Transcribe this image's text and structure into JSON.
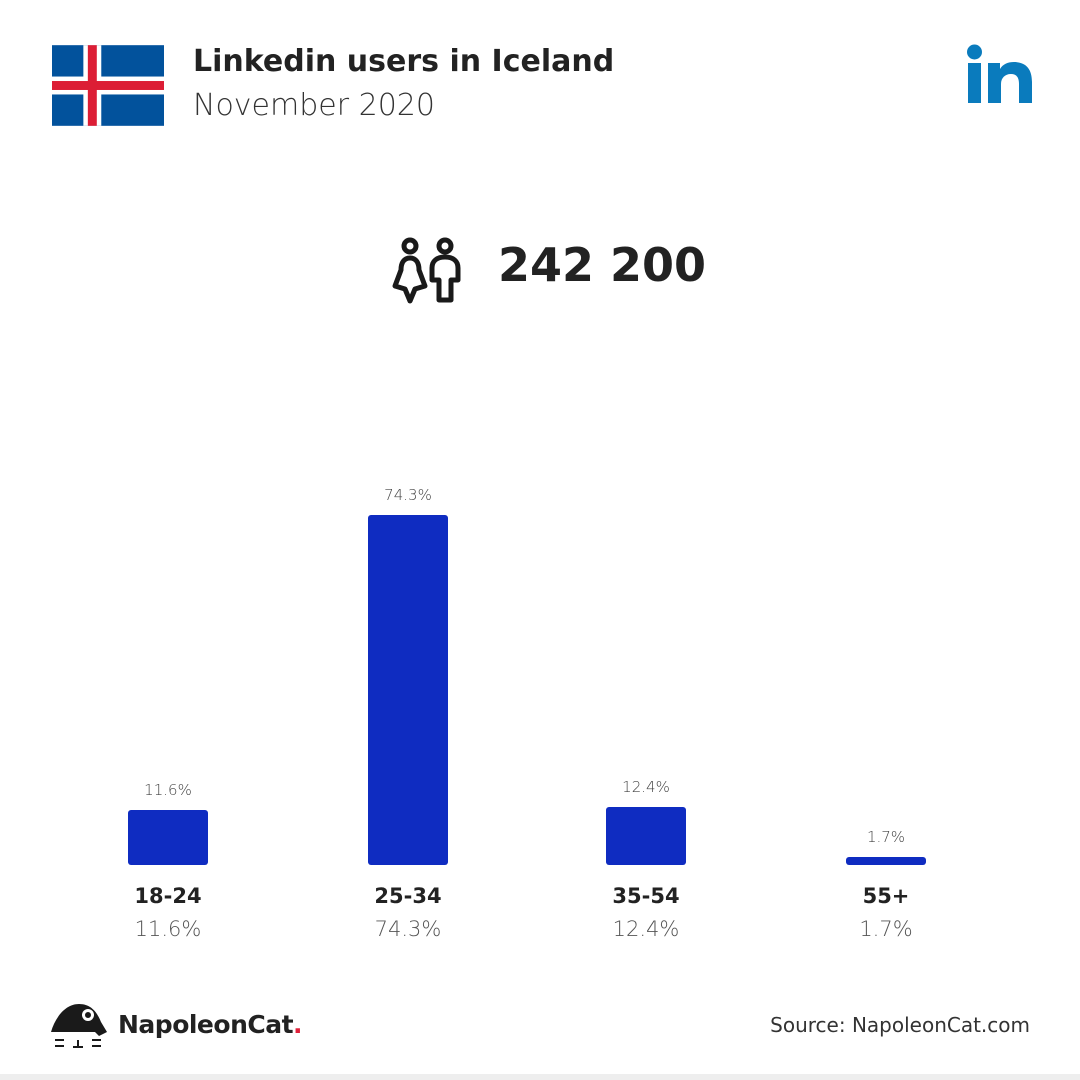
{
  "header": {
    "title": "Linkedin users in Iceland",
    "subtitle": "November 2020"
  },
  "total": {
    "value": "242 200",
    "icon": "people-icon"
  },
  "brand": {
    "name": "NapoleonCat",
    "dot": ".",
    "source": "Source: NapoleonCat.com"
  },
  "colors": {
    "bar": "#0f2cc1",
    "linkedin": "#0a7bbd"
  },
  "chart_data": {
    "type": "bar",
    "categories": [
      "18-24",
      "25-34",
      "35-54",
      "55+"
    ],
    "values": [
      11.6,
      74.3,
      12.4,
      1.7
    ],
    "value_labels": [
      "11.6%",
      "74.3%",
      "12.4%",
      "1.7%"
    ],
    "ylim": [
      0,
      74.3
    ],
    "grid": false
  }
}
